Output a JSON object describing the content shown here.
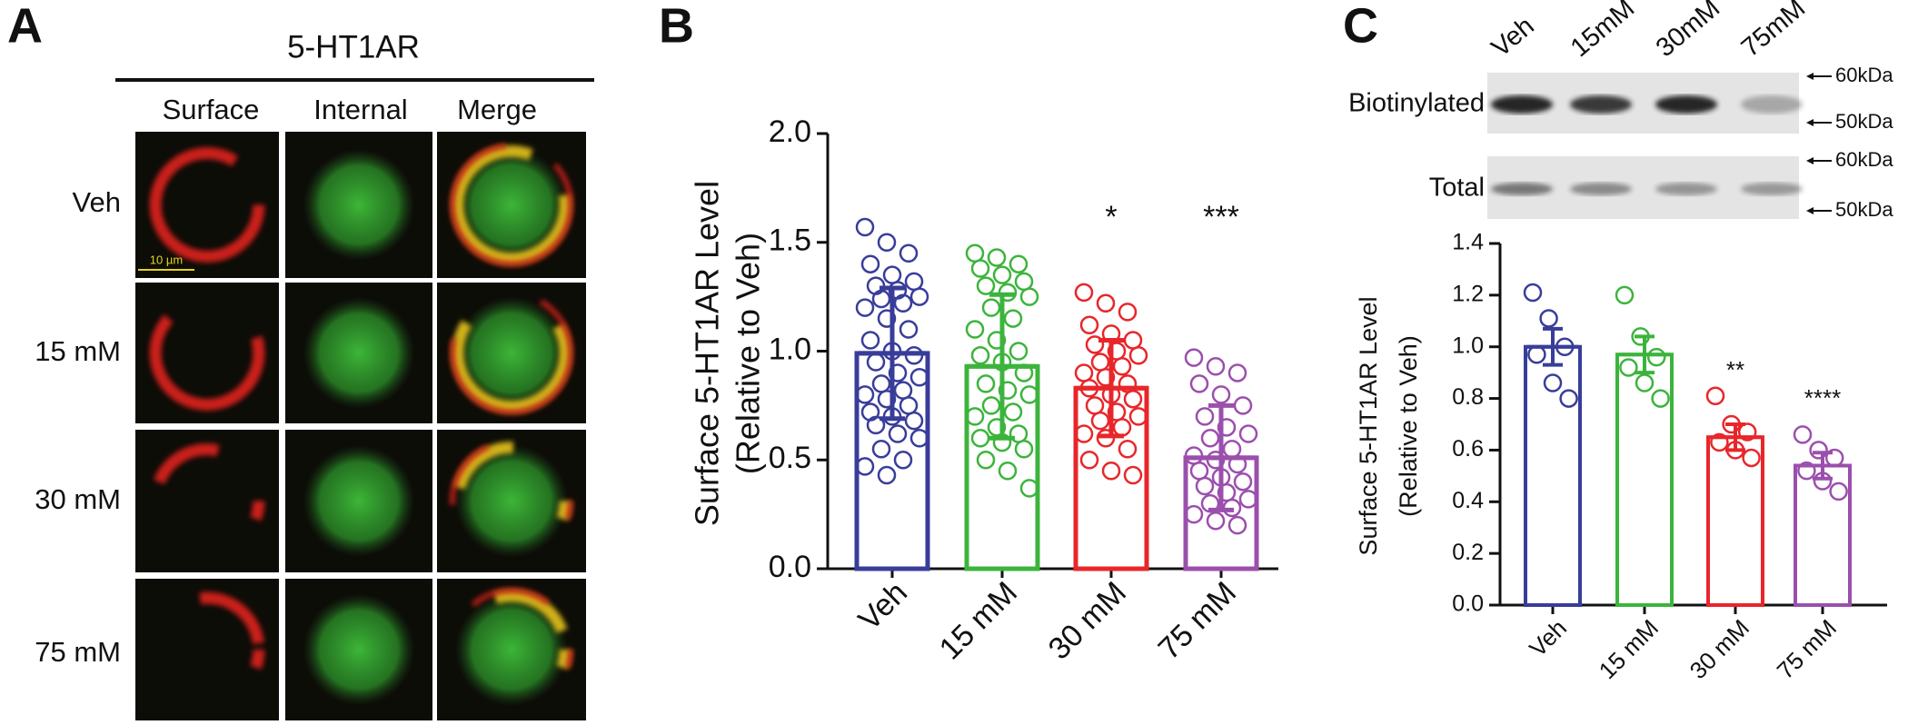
{
  "panels": [
    "A",
    "B",
    "C"
  ],
  "panel_a": {
    "title": "5-HT1AR",
    "columns": [
      "Surface",
      "Internal",
      "Merge"
    ],
    "rows": [
      "Veh",
      "15 mM",
      "30 mM",
      "75 mM"
    ],
    "scale_bar": "10 µm"
  },
  "blot": {
    "lanes": [
      "Veh",
      "15mM",
      "30mM",
      "75mM"
    ],
    "rows": [
      "Biotinylated",
      "Total"
    ],
    "markers": [
      "60kDa",
      "50kDa"
    ]
  },
  "chart_data": [
    {
      "type": "bar",
      "ylabel": [
        "Surface 5-HT1AR Level",
        "(Relative to Veh)"
      ],
      "categories": [
        "Veh",
        "15 mM",
        "30 mM",
        "75 mM"
      ],
      "colors": [
        "#383d9a",
        "#3cb43c",
        "#e8262a",
        "#9b4fad"
      ],
      "values": [
        0.99,
        0.93,
        0.83,
        0.51
      ],
      "errors": [
        0.3,
        0.33,
        0.22,
        0.24
      ],
      "points": [
        [
          1.57,
          1.5,
          1.45,
          1.4,
          1.35,
          1.32,
          1.3,
          1.28,
          1.25,
          1.24,
          1.22,
          1.2,
          1.15,
          1.1,
          1.05,
          1.0,
          0.98,
          0.95,
          0.9,
          0.88,
          0.85,
          0.82,
          0.8,
          0.78,
          0.75,
          0.72,
          0.7,
          0.68,
          0.66,
          0.62,
          0.6,
          0.55,
          0.5,
          0.47,
          0.43
        ],
        [
          1.45,
          1.43,
          1.4,
          1.38,
          1.35,
          1.32,
          1.3,
          1.27,
          1.25,
          1.2,
          1.15,
          1.1,
          1.05,
          1.0,
          0.98,
          0.95,
          0.9,
          0.85,
          0.82,
          0.8,
          0.75,
          0.72,
          0.7,
          0.65,
          0.62,
          0.6,
          0.58,
          0.55,
          0.5,
          0.45,
          0.37
        ],
        [
          1.27,
          1.22,
          1.18,
          1.12,
          1.08,
          1.05,
          1.03,
          1.0,
          0.98,
          0.95,
          0.93,
          0.9,
          0.88,
          0.85,
          0.83,
          0.8,
          0.78,
          0.75,
          0.72,
          0.7,
          0.68,
          0.65,
          0.62,
          0.6,
          0.55,
          0.5,
          0.45,
          0.43
        ],
        [
          0.97,
          0.93,
          0.9,
          0.85,
          0.8,
          0.75,
          0.7,
          0.65,
          0.62,
          0.6,
          0.55,
          0.52,
          0.5,
          0.48,
          0.45,
          0.42,
          0.4,
          0.38,
          0.35,
          0.32,
          0.3,
          0.28,
          0.25,
          0.22,
          0.2
        ]
      ],
      "annotations": [
        null,
        null,
        "*",
        "***"
      ],
      "ylim": [
        0,
        2
      ],
      "yticks": [
        {
          "value": 0,
          "label": "0.0"
        },
        0.5,
        {
          "value": 1,
          "label": "1.0"
        },
        1.5,
        {
          "value": 2,
          "label": "2.0"
        }
      ]
    },
    {
      "type": "bar",
      "ylabel": [
        "Surface 5-HT1AR Level",
        "(Relative to Veh)"
      ],
      "categories": [
        "Veh",
        "15 mM",
        "30 mM",
        "75 mM"
      ],
      "colors": [
        "#383d9a",
        "#3cb43c",
        "#e8262a",
        "#9b4fad"
      ],
      "values": [
        1.0,
        0.97,
        0.65,
        0.54
      ],
      "errors": [
        0.07,
        0.07,
        0.05,
        0.05
      ],
      "points": [
        [
          1.21,
          1.11,
          1.0,
          0.97,
          0.86,
          0.8
        ],
        [
          1.2,
          1.04,
          0.96,
          0.92,
          0.86,
          0.8
        ],
        [
          0.81,
          0.7,
          0.67,
          0.63,
          0.6,
          0.57
        ],
        [
          0.66,
          0.6,
          0.57,
          0.52,
          0.48,
          0.44
        ]
      ],
      "annotations": [
        null,
        null,
        "**",
        "****"
      ],
      "ylim": [
        0,
        1.4
      ],
      "yticks": [
        {
          "value": 0,
          "label": "0.0"
        },
        0.2,
        0.4,
        0.6,
        0.8,
        {
          "value": 1,
          "label": "1.0"
        },
        1.2,
        1.4
      ]
    }
  ]
}
